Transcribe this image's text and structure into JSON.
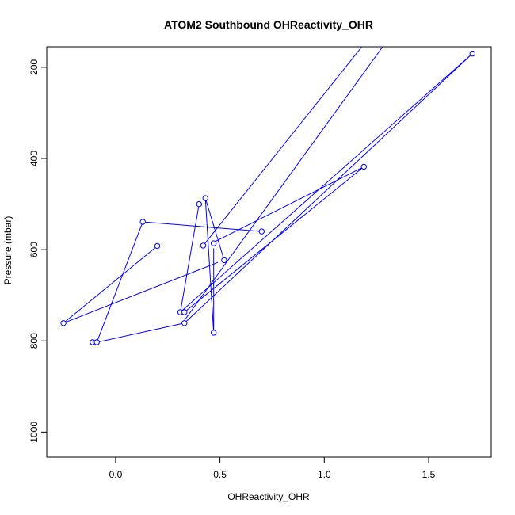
{
  "chart_data": {
    "type": "line",
    "title": "ATOM2 Southbound OHReactivity_OHR",
    "xlabel": "OHReactivity_OHR",
    "ylabel": "Pressure (mbar)",
    "xlim": [
      -0.33,
      1.8
    ],
    "ylim": [
      1055,
      155
    ],
    "y_reversed": true,
    "x_ticks": [
      "0.0",
      "0.5",
      "1.0",
      "1.5"
    ],
    "y_ticks": [
      "200",
      "400",
      "600",
      "800",
      "1000"
    ],
    "series": [
      {
        "color": "#0000ff",
        "marker": "open-circle",
        "points": [
          {
            "x": 0.2,
            "y": 592
          },
          {
            "x": -0.25,
            "y": 761
          },
          {
            "x": 0.49,
            "y": 628
          },
          {
            "x": null,
            "y": null
          },
          {
            "x": 0.52,
            "y": 623
          },
          {
            "x": 0.43,
            "y": 487
          },
          {
            "x": 0.47,
            "y": 782
          },
          {
            "x": 0.47,
            "y": 597
          },
          {
            "x": null,
            "y": null
          },
          {
            "x": 0.42,
            "y": 591
          },
          {
            "x": 1.18,
            "y": 155
          },
          {
            "x": null,
            "y": null
          },
          {
            "x": 0.7,
            "y": 560
          },
          {
            "x": 0.13,
            "y": 539
          },
          {
            "x": -0.09,
            "y": 803
          },
          {
            "x": -0.11,
            "y": 803
          },
          {
            "x": null,
            "y": null
          },
          {
            "x": 0.33,
            "y": 761
          },
          {
            "x": 1.71,
            "y": 170
          },
          {
            "x": 0.31,
            "y": 737
          },
          {
            "x": 0.4,
            "y": 500
          },
          {
            "x": 0.31,
            "y": 737
          },
          {
            "x": null,
            "y": null
          },
          {
            "x": 0.33,
            "y": 737
          },
          {
            "x": 1.19,
            "y": 418
          },
          {
            "x": 0.46,
            "y": 586
          },
          {
            "x": null,
            "y": null
          },
          {
            "x": 0.33,
            "y": 755
          },
          {
            "x": 1.28,
            "y": 155
          },
          {
            "x": null,
            "y": null
          },
          {
            "x": 0.33,
            "y": 761
          },
          {
            "x": -0.09,
            "y": 803
          }
        ]
      }
    ],
    "markers": [
      {
        "x": 0.2,
        "y": 592
      },
      {
        "x": -0.25,
        "y": 761
      },
      {
        "x": 0.52,
        "y": 623
      },
      {
        "x": 0.43,
        "y": 487
      },
      {
        "x": 0.4,
        "y": 500
      },
      {
        "x": 0.47,
        "y": 782
      },
      {
        "x": 0.47,
        "y": 586
      },
      {
        "x": 0.42,
        "y": 591
      },
      {
        "x": 0.7,
        "y": 560
      },
      {
        "x": 0.13,
        "y": 539
      },
      {
        "x": -0.11,
        "y": 803
      },
      {
        "x": -0.09,
        "y": 803
      },
      {
        "x": 0.33,
        "y": 761
      },
      {
        "x": 0.31,
        "y": 737
      },
      {
        "x": 0.33,
        "y": 737
      },
      {
        "x": 1.19,
        "y": 418
      },
      {
        "x": 1.71,
        "y": 170
      }
    ],
    "grid": false,
    "legend": "none"
  }
}
